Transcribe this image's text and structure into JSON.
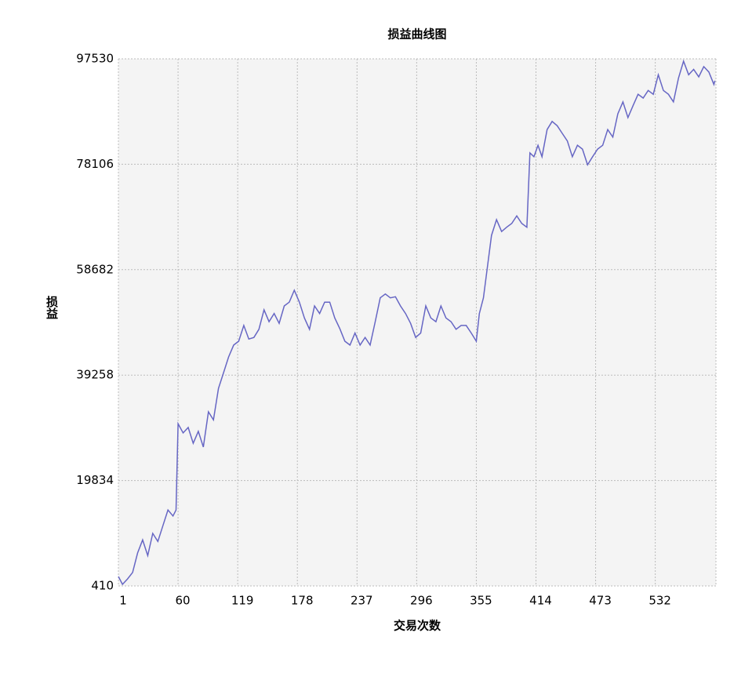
{
  "chart_data": {
    "type": "line",
    "title": "损益曲线图",
    "x_label": "交易次数",
    "y_label": "损益",
    "x": [
      1,
      5,
      10,
      15,
      20,
      25,
      30,
      35,
      40,
      45,
      50,
      55,
      58,
      60,
      65,
      70,
      75,
      80,
      85,
      90,
      95,
      100,
      105,
      110,
      115,
      120,
      125,
      130,
      135,
      140,
      145,
      150,
      155,
      160,
      165,
      170,
      175,
      180,
      185,
      190,
      195,
      200,
      205,
      210,
      215,
      220,
      225,
      230,
      235,
      240,
      245,
      250,
      255,
      260,
      265,
      270,
      275,
      280,
      285,
      290,
      295,
      300,
      305,
      310,
      315,
      320,
      325,
      330,
      335,
      340,
      345,
      350,
      355,
      358,
      362,
      366,
      370,
      375,
      380,
      385,
      390,
      395,
      400,
      405,
      408,
      412,
      416,
      420,
      425,
      430,
      435,
      440,
      445,
      450,
      455,
      460,
      465,
      470,
      475,
      480,
      485,
      490,
      495,
      500,
      505,
      510,
      515,
      520,
      525,
      530,
      535,
      540,
      545,
      550,
      555,
      560,
      565,
      570,
      575,
      580,
      585,
      590,
      591
    ],
    "series": [
      {
        "name": "损益",
        "color": "#6666c4",
        "values": [
          2144,
          700,
          1700,
          2900,
          6500,
          8900,
          6000,
          10100,
          8600,
          11500,
          14400,
          13300,
          14400,
          30300,
          28600,
          29600,
          26700,
          28900,
          26000,
          32500,
          31000,
          36800,
          39700,
          42600,
          44800,
          45500,
          48400,
          45900,
          46200,
          47700,
          51300,
          49100,
          50600,
          48800,
          52000,
          52700,
          54900,
          52700,
          49800,
          47700,
          52000,
          50600,
          52700,
          52700,
          49800,
          47800,
          45500,
          44800,
          47000,
          44800,
          46200,
          44800,
          49100,
          53500,
          54200,
          53500,
          53700,
          52000,
          50600,
          48800,
          46200,
          47000,
          52000,
          49800,
          49100,
          52000,
          49800,
          49100,
          47700,
          48400,
          48400,
          47000,
          45500,
          50600,
          53500,
          59200,
          65000,
          67900,
          65700,
          66500,
          67200,
          68600,
          67200,
          66500,
          80200,
          79500,
          81600,
          79500,
          84500,
          86000,
          85200,
          83800,
          82400,
          79500,
          81600,
          80900,
          78000,
          79500,
          80900,
          81600,
          84500,
          83100,
          87400,
          89600,
          86700,
          88900,
          91000,
          90300,
          91700,
          91000,
          94600,
          91700,
          91000,
          89600,
          94000,
          97100,
          94600,
          95600,
          94200,
          96100,
          95100,
          92800,
          93500
        ]
      }
    ],
    "xlim": [
      1,
      592
    ],
    "ylim": [
      410,
      97530
    ],
    "xticks": [
      1,
      60,
      119,
      178,
      237,
      296,
      355,
      414,
      473,
      532
    ],
    "yticks": [
      410,
      19834,
      39258,
      58682,
      78106,
      97530
    ],
    "grid": true
  }
}
